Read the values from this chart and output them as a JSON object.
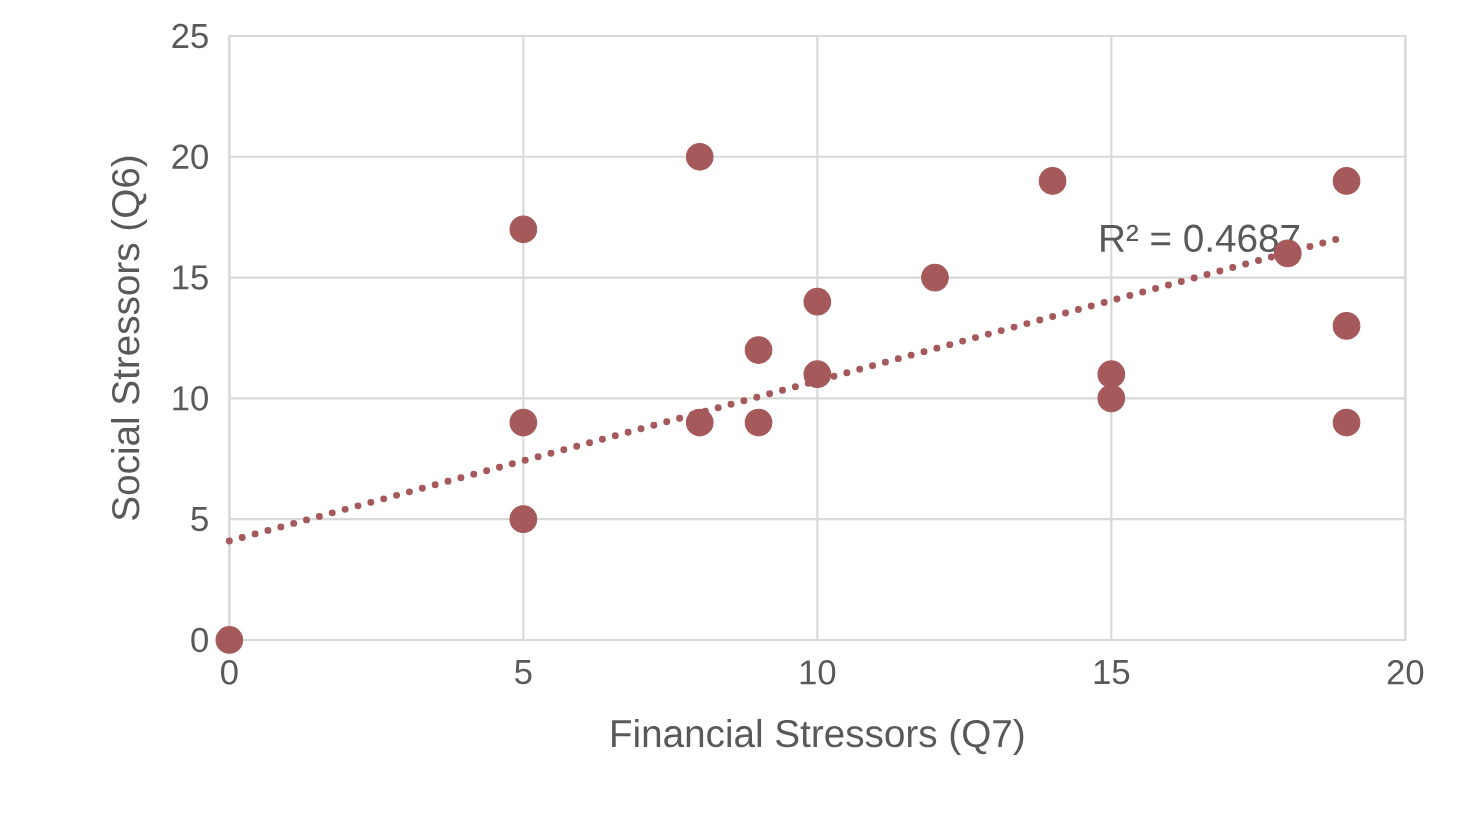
{
  "chart_data": {
    "type": "scatter",
    "xlabel": "Financial Stressors (Q7)",
    "ylabel": "Social Stressors (Q6)",
    "xlim": [
      0,
      20
    ],
    "ylim": [
      0,
      25
    ],
    "xticks": [
      0,
      5,
      10,
      15,
      20
    ],
    "yticks": [
      0,
      5,
      10,
      15,
      20,
      25
    ],
    "grid": true,
    "marker": "circle",
    "series": [
      {
        "color": "#a5595a",
        "x": [
          0,
          5,
          5,
          5,
          8,
          8,
          9,
          9,
          10,
          10,
          12,
          14,
          15,
          15,
          18,
          19,
          19,
          19
        ],
        "values": [
          0,
          17,
          9,
          5,
          20,
          9,
          12,
          9,
          14,
          11,
          15,
          19,
          11,
          10,
          16,
          19,
          13,
          9
        ]
      },
      {
        "type": "line",
        "color": "#a5595a",
        "line_style": "dotted",
        "marker": "none",
        "x": [
          0,
          19
        ],
        "values": [
          4.1,
          16.7
        ]
      }
    ],
    "annotations": [
      "R² = 0.4687"
    ]
  }
}
